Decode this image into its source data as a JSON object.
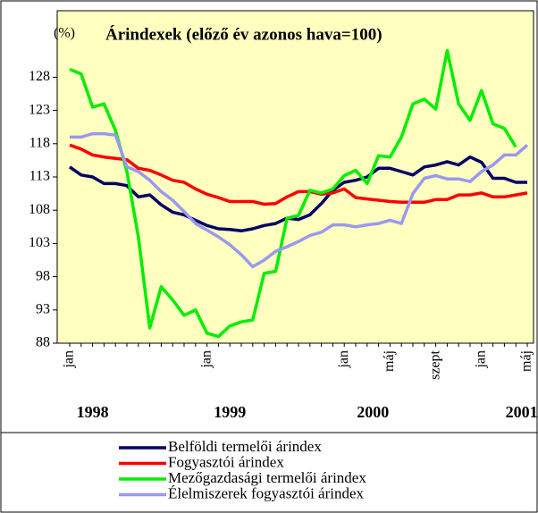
{
  "chart_data": {
    "type": "line",
    "title": "Árindexek (előző év azonos hava=100)",
    "y_label": "(%)",
    "categories": [
      "jan",
      null,
      null,
      null,
      null,
      null,
      null,
      null,
      null,
      null,
      null,
      null,
      "jan",
      null,
      null,
      null,
      null,
      null,
      null,
      null,
      null,
      null,
      null,
      null,
      "jan",
      null,
      null,
      null,
      "máj",
      null,
      null,
      null,
      "szept",
      null,
      null,
      null,
      "jan",
      null,
      null,
      null,
      "máj"
    ],
    "year_labels": [
      "1998",
      "1999",
      "2000",
      "2001"
    ],
    "ylim": [
      88,
      138
    ],
    "yticks": [
      88,
      93,
      98,
      103,
      108,
      113,
      118,
      123,
      128
    ],
    "background": "#ffffc0",
    "series": [
      {
        "name": "Belföldi termelői árindex",
        "color": "#000066",
        "values": [
          114.5,
          113.3,
          113,
          112,
          112,
          111.7,
          110,
          110.3,
          108.8,
          107.7,
          107.3,
          106.5,
          105.7,
          105.2,
          105.1,
          104.9,
          105.2,
          105.7,
          106,
          106.8,
          106.6,
          107.3,
          109,
          111,
          112.2,
          112.5,
          113,
          114.3,
          114.3,
          113.8,
          113.3,
          114.5,
          114.8,
          115.3,
          114.8,
          116,
          115.2,
          112.8,
          112.8,
          112.2,
          112.2
        ]
      },
      {
        "name": "Fogyasztói árindex",
        "color": "#ff0000",
        "values": [
          117.8,
          117.2,
          116.3,
          116,
          115.8,
          115.6,
          114.3,
          114,
          113.3,
          112.5,
          112.2,
          111.2,
          110.4,
          109.9,
          109.3,
          109.3,
          109.3,
          108.9,
          109,
          110,
          110.8,
          110.8,
          110.4,
          110.6,
          111.2,
          109.9,
          109.7,
          109.5,
          109.3,
          109.2,
          109.2,
          109.2,
          109.6,
          109.6,
          110.3,
          110.3,
          110.6,
          110,
          110,
          110.3,
          110.6
        ]
      },
      {
        "name": "Mezőgazdasági termelői  árindex",
        "color": "#00ee00",
        "values": [
          129.2,
          128.5,
          123.5,
          124,
          120,
          113.8,
          104,
          90.3,
          96.5,
          94.5,
          92.2,
          93,
          89.5,
          89,
          90.6,
          91.2,
          91.5,
          98.5,
          98.8,
          106.8,
          107.2,
          111,
          110.6,
          111.2,
          113.2,
          114,
          112,
          116.2,
          116,
          119,
          124,
          124.7,
          123.2,
          132,
          124,
          121.5,
          126,
          121,
          120.3,
          117.5,
          null
        ]
      },
      {
        "name": "Élelmiszerek fogyasztói árindex",
        "color": "#9999ee",
        "values": [
          119,
          119,
          119.5,
          119.5,
          119.3,
          114.5,
          113.8,
          112.5,
          110.8,
          109.5,
          107.8,
          106,
          105,
          104,
          102.8,
          101.3,
          99.5,
          100.5,
          101.8,
          102.5,
          103.3,
          104.2,
          104.7,
          105.8,
          105.8,
          105.5,
          105.8,
          106,
          106.5,
          106,
          110.5,
          112.8,
          113.2,
          112.7,
          112.7,
          112.3,
          113.8,
          114.8,
          116.3,
          116.3,
          117.8
        ]
      }
    ]
  }
}
